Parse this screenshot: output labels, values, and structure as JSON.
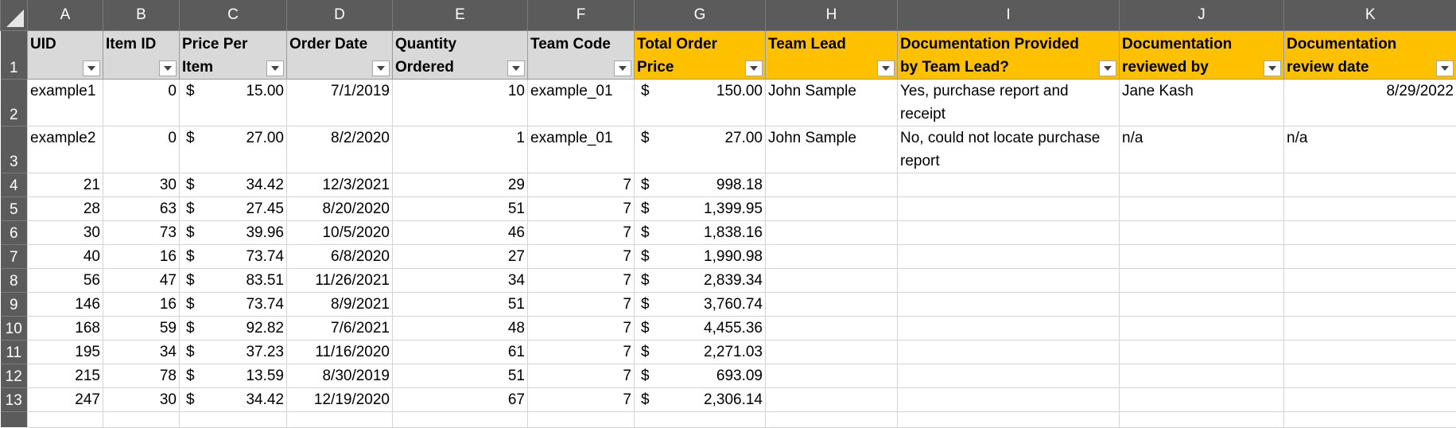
{
  "sheet": {
    "column_letters": [
      "A",
      "B",
      "C",
      "D",
      "E",
      "F",
      "G",
      "H",
      "I",
      "J",
      "K"
    ],
    "header_row_number": "1",
    "headers": [
      {
        "label": "UID",
        "style": "gray"
      },
      {
        "label": "Item ID",
        "style": "gray"
      },
      {
        "label": "Price Per Item",
        "style": "gray"
      },
      {
        "label": "Order Date",
        "style": "gray"
      },
      {
        "label": "Quantity Ordered",
        "style": "gray"
      },
      {
        "label": "Team Code",
        "style": "gray"
      },
      {
        "label": "Total Order Price",
        "style": "orange"
      },
      {
        "label": "Team Lead",
        "style": "orange"
      },
      {
        "label": "Documentation Provided by Team Lead?",
        "style": "orange"
      },
      {
        "label": "Documentation reviewed by",
        "style": "orange"
      },
      {
        "label": "Documentation review date",
        "style": "orange"
      }
    ],
    "rows": [
      {
        "num": "2",
        "uid": "example1",
        "item_id": "0",
        "price": "15.00",
        "date": "7/1/2019",
        "qty": "10",
        "team": "example_01",
        "total": "150.00",
        "lead": "John Sample",
        "doc": "Yes, purchase report and receipt",
        "reviewer": "Jane Kash",
        "review_date": "8/29/2022"
      },
      {
        "num": "3",
        "uid": "example2",
        "item_id": "0",
        "price": "27.00",
        "date": "8/2/2020",
        "qty": "1",
        "team": "example_01",
        "total": "27.00",
        "lead": "John Sample",
        "doc": "No, could not locate purchase report",
        "reviewer": "n/a",
        "review_date": "n/a"
      },
      {
        "num": "4",
        "uid": "21",
        "item_id": "30",
        "price": "34.42",
        "date": "12/3/2021",
        "qty": "29",
        "team": "7",
        "total": "998.18",
        "lead": "",
        "doc": "",
        "reviewer": "",
        "review_date": ""
      },
      {
        "num": "5",
        "uid": "28",
        "item_id": "63",
        "price": "27.45",
        "date": "8/20/2020",
        "qty": "51",
        "team": "7",
        "total": "1,399.95",
        "lead": "",
        "doc": "",
        "reviewer": "",
        "review_date": ""
      },
      {
        "num": "6",
        "uid": "30",
        "item_id": "73",
        "price": "39.96",
        "date": "10/5/2020",
        "qty": "46",
        "team": "7",
        "total": "1,838.16",
        "lead": "",
        "doc": "",
        "reviewer": "",
        "review_date": ""
      },
      {
        "num": "7",
        "uid": "40",
        "item_id": "16",
        "price": "73.74",
        "date": "6/8/2020",
        "qty": "27",
        "team": "7",
        "total": "1,990.98",
        "lead": "",
        "doc": "",
        "reviewer": "",
        "review_date": ""
      },
      {
        "num": "8",
        "uid": "56",
        "item_id": "47",
        "price": "83.51",
        "date": "11/26/2021",
        "qty": "34",
        "team": "7",
        "total": "2,839.34",
        "lead": "",
        "doc": "",
        "reviewer": "",
        "review_date": ""
      },
      {
        "num": "9",
        "uid": "146",
        "item_id": "16",
        "price": "73.74",
        "date": "8/9/2021",
        "qty": "51",
        "team": "7",
        "total": "3,760.74",
        "lead": "",
        "doc": "",
        "reviewer": "",
        "review_date": ""
      },
      {
        "num": "10",
        "uid": "168",
        "item_id": "59",
        "price": "92.82",
        "date": "7/6/2021",
        "qty": "48",
        "team": "7",
        "total": "4,455.36",
        "lead": "",
        "doc": "",
        "reviewer": "",
        "review_date": ""
      },
      {
        "num": "11",
        "uid": "195",
        "item_id": "34",
        "price": "37.23",
        "date": "11/16/2020",
        "qty": "61",
        "team": "7",
        "total": "2,271.03",
        "lead": "",
        "doc": "",
        "reviewer": "",
        "review_date": ""
      },
      {
        "num": "12",
        "uid": "215",
        "item_id": "78",
        "price": "13.59",
        "date": "8/30/2019",
        "qty": "51",
        "team": "7",
        "total": "693.09",
        "lead": "",
        "doc": "",
        "reviewer": "",
        "review_date": ""
      },
      {
        "num": "13",
        "uid": "247",
        "item_id": "30",
        "price": "34.42",
        "date": "12/19/2020",
        "qty": "67",
        "team": "7",
        "total": "2,306.14",
        "lead": "",
        "doc": "",
        "reviewer": "",
        "review_date": ""
      }
    ],
    "currency_symbol": "$",
    "colors": {
      "header_gray": "#d9d9d9",
      "header_orange": "#ffc000",
      "frame_gray": "#5b5b5b"
    }
  }
}
